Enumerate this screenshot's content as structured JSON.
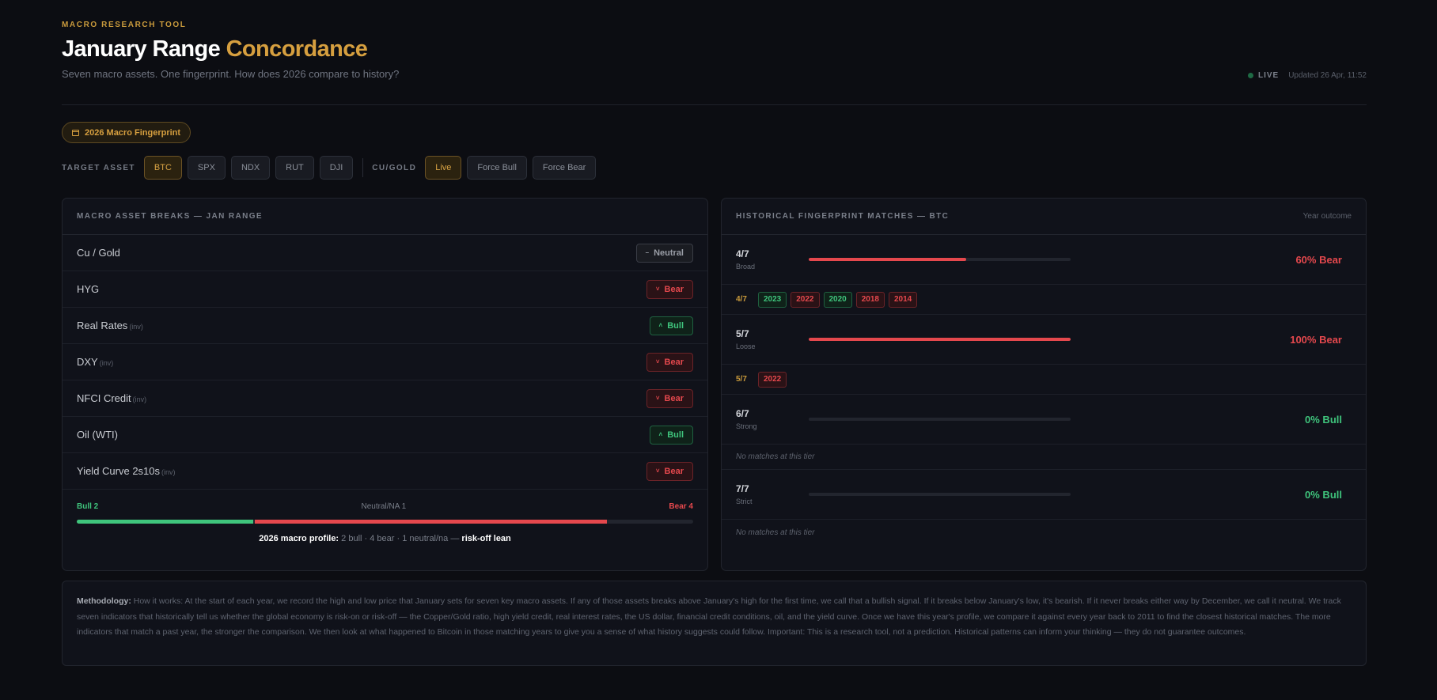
{
  "header": {
    "eyebrow": "MACRO RESEARCH TOOL",
    "title_main": "January Range",
    "title_accent": "Concordance",
    "subtitle": "Seven macro assets. One fingerprint. How does 2026 compare to history?",
    "status_label": "LIVE",
    "updated": "Updated 26 Apr, 11:52",
    "status_color": "#1e6a44"
  },
  "fingerprint_pill": {
    "label": "2026 Macro Fingerprint",
    "icon": "calendar-icon"
  },
  "controls": {
    "target_label": "TARGET ASSET",
    "assets": [
      "BTC",
      "SPX",
      "NDX",
      "RUT",
      "DJI"
    ],
    "selected_asset": "BTC",
    "cugold_label": "CU/GOLD",
    "modes": [
      "Live",
      "Force Bull",
      "Force Bear"
    ],
    "selected_mode": "Live"
  },
  "breaks": {
    "title": "MACRO ASSET BREAKS — JAN RANGE",
    "rows": [
      {
        "name": "Cu / Gold",
        "inv": "",
        "signal": "Neutral",
        "kind": "neutral",
        "icon": "minus-icon"
      },
      {
        "name": "HYG",
        "inv": "",
        "signal": "Bear",
        "kind": "bear",
        "icon": "chevron-down-icon"
      },
      {
        "name": "Real Rates",
        "inv": "(inv)",
        "signal": "Bull",
        "kind": "bull",
        "icon": "chevron-up-icon"
      },
      {
        "name": "DXY",
        "inv": "(inv)",
        "signal": "Bear",
        "kind": "bear",
        "icon": "chevron-down-icon"
      },
      {
        "name": "NFCI Credit",
        "inv": "(inv)",
        "signal": "Bear",
        "kind": "bear",
        "icon": "chevron-down-icon"
      },
      {
        "name": "Oil (WTI)",
        "inv": "",
        "signal": "Bull",
        "kind": "bull",
        "icon": "chevron-up-icon"
      },
      {
        "name": "Yield Curve 2s10s",
        "inv": "(inv)",
        "signal": "Bear",
        "kind": "bear",
        "icon": "chevron-down-icon"
      }
    ],
    "summary": {
      "bull_label": "Bull 2",
      "neutral_label": "Neutral/NA 1",
      "bear_label": "Bear 4",
      "bull_count": 2,
      "neutral_count": 1,
      "bear_count": 4,
      "profile_label": "2026 macro profile:",
      "profile_detail": "2 bull · 4 bear · 1 neutral/na —",
      "profile_lean": "risk-off lean"
    }
  },
  "matches": {
    "title": "HISTORICAL FINGERPRINT MATCHES — BTC",
    "aside": "Year outcome",
    "tiers": [
      {
        "frac": "4/7",
        "name": "Broad",
        "bear_share": 0.6,
        "outcome": "60% Bear",
        "kind": "bear",
        "years": [
          {
            "y": "2023",
            "k": "bull"
          },
          {
            "y": "2022",
            "k": "bear"
          },
          {
            "y": "2020",
            "k": "bull"
          },
          {
            "y": "2018",
            "k": "bear"
          },
          {
            "y": "2014",
            "k": "bear"
          }
        ]
      },
      {
        "frac": "5/7",
        "name": "Loose",
        "bear_share": 1.0,
        "outcome": "100% Bear",
        "kind": "bear",
        "years": [
          {
            "y": "2022",
            "k": "bear"
          }
        ]
      },
      {
        "frac": "6/7",
        "name": "Strong",
        "bear_share": 0,
        "outcome": "0% Bull",
        "kind": "bull",
        "years": []
      },
      {
        "frac": "7/7",
        "name": "Strict",
        "bear_share": 0,
        "outcome": "0% Bull",
        "kind": "bull",
        "years": []
      }
    ],
    "no_match_text": "No matches at this tier"
  },
  "methodology": {
    "label": "Methodology:",
    "text": "How it works: At the start of each year, we record the high and low price that January sets for seven key macro assets. If any of those assets breaks above January's high for the first time, we call that a bullish signal. If it breaks below January's low, it's bearish. If it never breaks either way by December, we call it neutral. We track seven indicators that historically tell us whether the global economy is risk-on or risk-off — the Copper/Gold ratio, high yield credit, real interest rates, the US dollar, financial credit conditions, oil, and the yield curve. Once we have this year's profile, we compare it against every year back to 2011 to find the closest historical matches. The more indicators that match a past year, the stronger the comparison. We then look at what happened to Bitcoin in those matching years to give you a sense of what history suggests could follow. Important: This is a research tool, not a prediction. Historical patterns can inform your thinking — they do not guarantee outcomes."
  },
  "colors": {
    "accent": "#d69f3f",
    "bull": "#3fc47c",
    "bear": "#e5484d",
    "background": "#0c0d12"
  }
}
